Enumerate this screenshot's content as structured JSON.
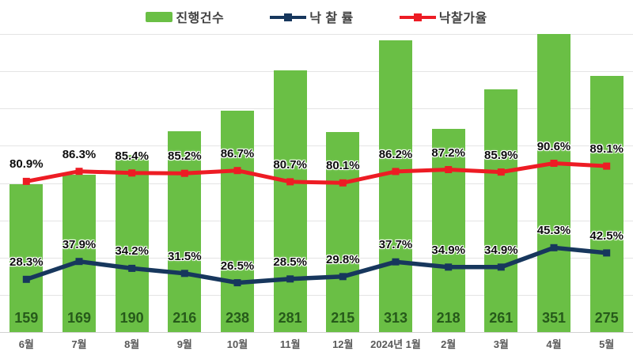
{
  "chart_data": {
    "type": "combo",
    "title": "",
    "categories": [
      "6월",
      "7월",
      "8월",
      "9월",
      "10월",
      "11월",
      "12월",
      "2024년 1월",
      "2월",
      "3월",
      "4월",
      "5월"
    ],
    "series": [
      {
        "name": "진행건수",
        "type": "bar",
        "axis": "primary",
        "color": "#6abf45",
        "values": [
          159,
          169,
          190,
          216,
          238,
          281,
          215,
          313,
          218,
          261,
          351,
          275
        ]
      },
      {
        "name": "낙 찰 률",
        "type": "line",
        "axis": "secondary",
        "color": "#17375d",
        "values": [
          28.3,
          37.9,
          34.2,
          31.5,
          26.5,
          28.5,
          29.8,
          37.7,
          34.9,
          34.9,
          45.3,
          42.5
        ],
        "unit": "%"
      },
      {
        "name": "낙찰가율",
        "type": "line",
        "axis": "secondary",
        "color": "#ed1c24",
        "values": [
          80.9,
          86.3,
          85.4,
          85.2,
          86.7,
          80.7,
          80.1,
          86.2,
          87.2,
          85.9,
          90.6,
          89.1
        ],
        "unit": "%"
      }
    ],
    "primary_axis": {
      "min": 0,
      "max": 320,
      "gridline_step": 40,
      "labels_visible": false,
      "note": "4월 bar (351) exceeds axis max and is clipped at plot top"
    },
    "secondary_axis": {
      "min": 0,
      "max": 160,
      "labels_visible": false
    },
    "grid": true,
    "legend_position": "top",
    "xlabel": "",
    "ylabel": ""
  },
  "styles": {
    "bar_color": "#6abf45",
    "bar_label_color": "#265a1a",
    "nakchal_rate_color": "#17375d",
    "nakchal_price_color": "#ed1c24",
    "x_label_color": "#595959",
    "legend_text_color": "#404040",
    "gridline_color": "#e4e4e4",
    "axis_line_color": "#d2d2d2",
    "point_label_color": "#0d0d0d"
  }
}
